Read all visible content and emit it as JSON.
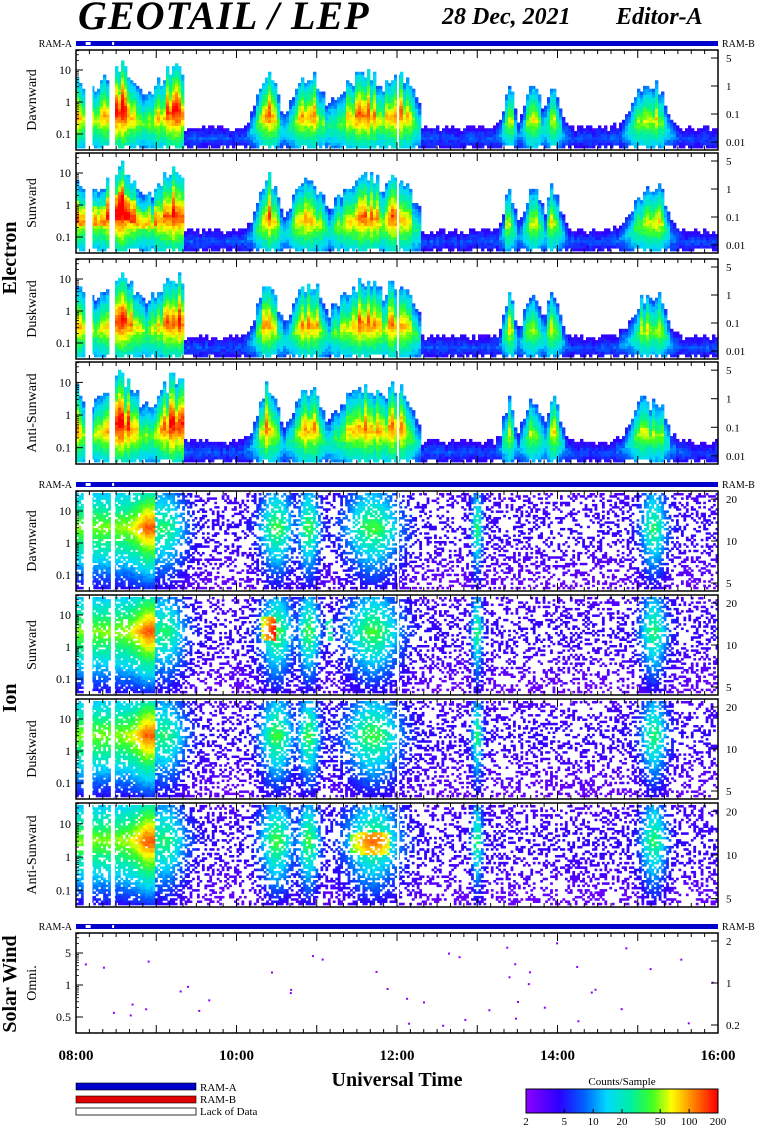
{
  "header": {
    "title": "GEOTAIL / LEP",
    "date": "28 Dec, 2021",
    "editor": "Editor-A"
  },
  "colors": {
    "ram_a": "#0000cc",
    "ram_b": "#e00000",
    "lack": "#ffffff"
  },
  "groups": {
    "electron": "Electron",
    "ion": "Ion",
    "solar_wind": "Solar Wind"
  },
  "ram_labels": {
    "a": "RAM-A",
    "b": "RAM-B"
  },
  "panels": [
    {
      "id": "e-dawn",
      "label": "Dawnward",
      "left_ticks": [
        "10",
        "1",
        "0.1"
      ],
      "right_ticks": [
        "5",
        "1",
        "0.1",
        "0.01"
      ]
    },
    {
      "id": "e-sun",
      "label": "Sunward",
      "left_ticks": [
        "10",
        "1",
        "0.1"
      ],
      "right_ticks": [
        "5",
        "1",
        "0.1",
        "0.01"
      ]
    },
    {
      "id": "e-dusk",
      "label": "Duskward",
      "left_ticks": [
        "10",
        "1",
        "0.1"
      ],
      "right_ticks": [
        "5",
        "1",
        "0.1",
        "0.01"
      ]
    },
    {
      "id": "e-anti",
      "label": "Anti-Sunward",
      "left_ticks": [
        "10",
        "1",
        "0.1"
      ],
      "right_ticks": [
        "5",
        "1",
        "0.1",
        "0.01"
      ]
    },
    {
      "id": "i-dawn",
      "label": "Dawnward",
      "left_ticks": [
        "10",
        "1",
        "0.1"
      ],
      "right_ticks": [
        "20",
        "10",
        "5"
      ]
    },
    {
      "id": "i-sun",
      "label": "Sunward",
      "left_ticks": [
        "10",
        "1",
        "0.1"
      ],
      "right_ticks": [
        "20",
        "10",
        "5"
      ]
    },
    {
      "id": "i-dusk",
      "label": "Duskward",
      "left_ticks": [
        "10",
        "1",
        "0.1"
      ],
      "right_ticks": [
        "20",
        "10",
        "5"
      ]
    },
    {
      "id": "i-anti",
      "label": "Anti-Sunward",
      "left_ticks": [
        "10",
        "1",
        "0.1"
      ],
      "right_ticks": [
        "20",
        "10",
        "5"
      ]
    },
    {
      "id": "sw-omni",
      "label": "Omni.",
      "left_ticks": [
        "5",
        "1",
        "0.5"
      ],
      "right_ticks": [
        "2",
        "1",
        "0.2"
      ]
    }
  ],
  "chart_data": {
    "type": "heatmap",
    "xlabel": "Universal Time",
    "x_ticks": [
      "08:00",
      "10:00",
      "12:00",
      "14:00",
      "16:00"
    ],
    "xlim_hours": [
      8,
      16
    ],
    "colorbar": {
      "title": "Counts/Sample",
      "ticks": [
        "2",
        "5",
        "10",
        "20",
        "50",
        "100",
        "200"
      ],
      "range": [
        2,
        200
      ],
      "scale": "log"
    }
  },
  "legend": {
    "ram_a": "RAM-A",
    "ram_b": "RAM-B",
    "lack": "Lack of Data"
  }
}
